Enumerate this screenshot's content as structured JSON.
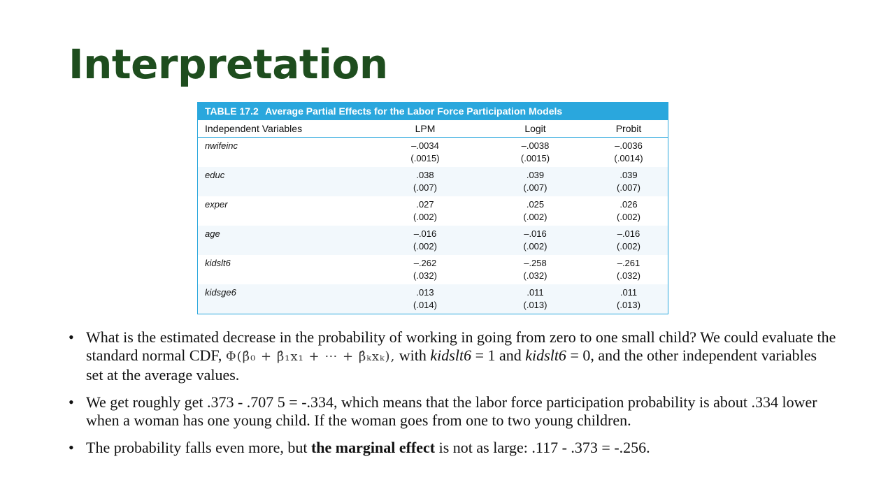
{
  "slide": {
    "title": "Interpretation"
  },
  "table": {
    "number": "TABLE 17.2",
    "caption": "Average Partial Effects for the Labor Force Participation Models",
    "headers": [
      "Independent Variables",
      "LPM",
      "Logit",
      "Probit"
    ],
    "rows": [
      {
        "var": "nwifeinc",
        "lpm": "–.0034",
        "lpm_se": "(.0015)",
        "logit": "–.0038",
        "logit_se": "(.0015)",
        "probit": "–.0036",
        "probit_se": "(.0014)"
      },
      {
        "var": "educ",
        "lpm": ".038",
        "lpm_se": "(.007)",
        "logit": ".039",
        "logit_se": "(.007)",
        "probit": ".039",
        "probit_se": "(.007)"
      },
      {
        "var": "exper",
        "lpm": ".027",
        "lpm_se": "(.002)",
        "logit": ".025",
        "logit_se": "(.002)",
        "probit": ".026",
        "probit_se": "(.002)"
      },
      {
        "var": "age",
        "lpm": "–.016",
        "lpm_se": "(.002)",
        "logit": "–.016",
        "logit_se": "(.002)",
        "probit": "–.016",
        "probit_se": "(.002)"
      },
      {
        "var": "kidslt6",
        "lpm": "–.262",
        "lpm_se": "(.032)",
        "logit": "–.258",
        "logit_se": "(.032)",
        "probit": "–.261",
        "probit_se": "(.032)"
      },
      {
        "var": "kidsge6",
        "lpm": ".013",
        "lpm_se": "(.014)",
        "logit": ".011",
        "logit_se": "(.013)",
        "probit": ".011",
        "probit_se": "(.013)"
      }
    ]
  },
  "bullets": {
    "b1": {
      "before": "What is the estimated decrease in the probability of working in going from zero to one small child? We could evaluate the standard normal CDF,",
      "formula": "Φ(β̂₀ + β̂₁x₁ + ⋯ + β̂ₖxₖ),",
      "mid1": "with",
      "var1": "kidslt6",
      "mid2": "= 1 and",
      "var2": "kidslt6",
      "after": "= 0, and the other independent variables set at the average values."
    },
    "b2": {
      "text": "We get roughly get .373 - .707 5 = -.334, which means that the labor force participation probability is about .334 lower when a woman has one young child. If the woman goes from one to two young children."
    },
    "b3": {
      "before": "The probability falls even more, but",
      "bold": "the marginal effect",
      "after": "is not as large: .117 - .373 = -.256."
    }
  }
}
